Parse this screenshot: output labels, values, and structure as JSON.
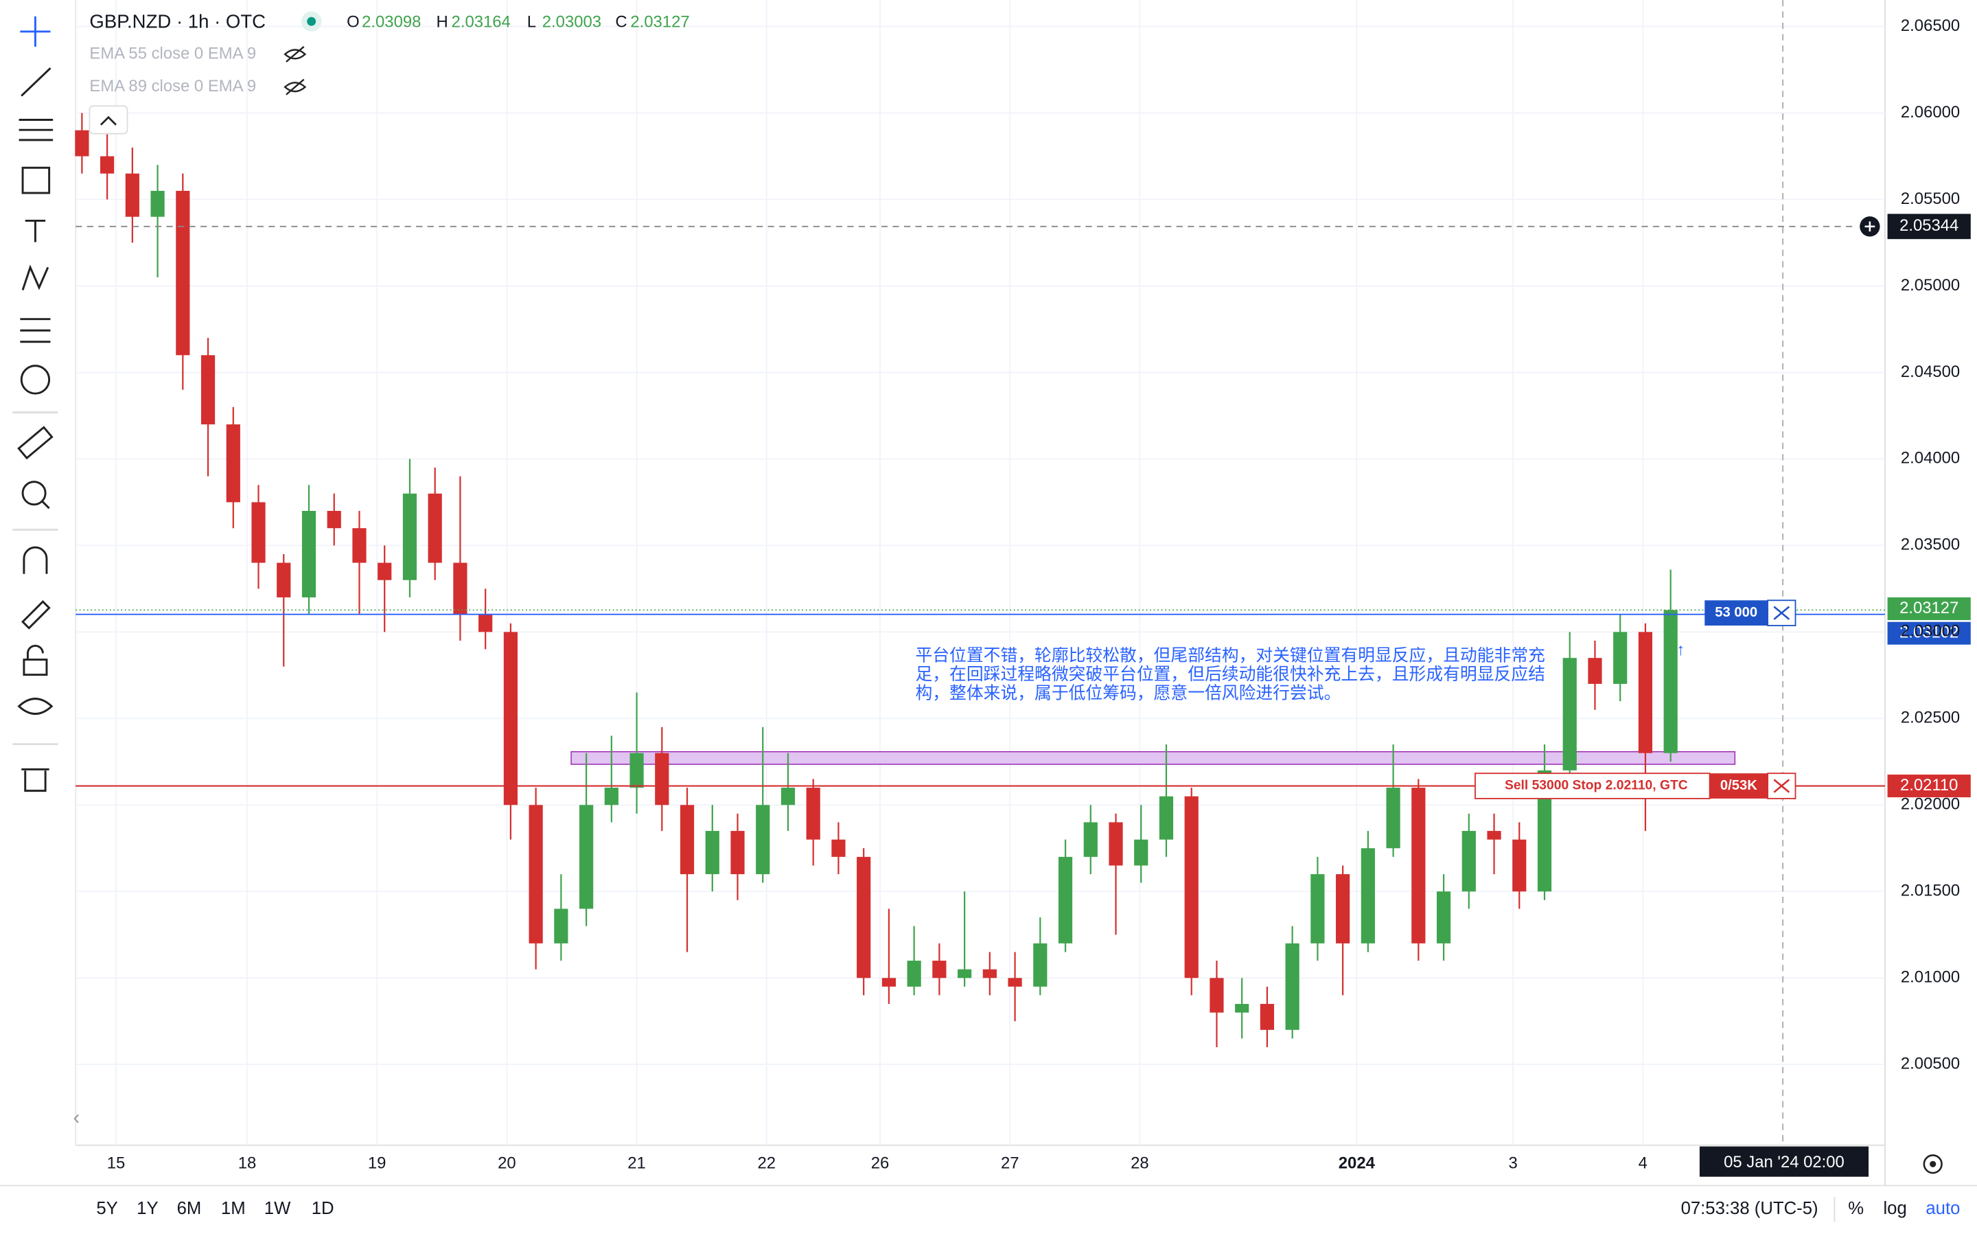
{
  "header": {
    "symbol": "GBP.NZD · 1h · OTC",
    "ohlc": [
      {
        "label": "O",
        "value": 2.03098
      },
      {
        "label": "H",
        "value": 2.03164
      },
      {
        "label": "L",
        "value": 2.03003
      },
      {
        "label": "C",
        "value": 2.03127
      }
    ],
    "indicators": [
      "EMA 55 close 0 EMA 9",
      "EMA 89 close 0 EMA 9"
    ]
  },
  "chart_data": {
    "type": "candlestick",
    "up_color": "#3fa34d",
    "down_color": "#d42f2f",
    "grid": true,
    "open": [
      2.059,
      2.0575,
      2.0565,
      2.054,
      2.0555,
      2.046,
      2.042,
      2.0375,
      2.034,
      2.032,
      2.037,
      2.036,
      2.034,
      2.033,
      2.038,
      2.034,
      2.031,
      2.03,
      2.02,
      2.012,
      2.014,
      2.02,
      2.021,
      2.023,
      2.02,
      2.016,
      2.0185,
      2.016,
      2.02,
      2.021,
      2.018,
      2.017,
      2.01,
      2.0095,
      2.011,
      2.01,
      2.0105,
      2.01,
      2.0095,
      2.012,
      2.017,
      2.019,
      2.0165,
      2.018,
      2.0205,
      2.01,
      2.008,
      2.0085,
      2.007,
      2.012,
      2.016,
      2.012,
      2.0175,
      2.021,
      2.012,
      2.015,
      2.0185,
      2.018,
      2.015,
      2.022,
      2.0285,
      2.027,
      2.03,
      2.023
    ],
    "high": [
      2.06,
      2.059,
      2.058,
      2.057,
      2.0565,
      2.047,
      2.043,
      2.0385,
      2.0345,
      2.0385,
      2.038,
      2.037,
      2.035,
      2.04,
      2.0395,
      2.039,
      2.0325,
      2.0305,
      2.021,
      2.016,
      2.023,
      2.024,
      2.0265,
      2.0245,
      2.021,
      2.02,
      2.0195,
      2.0245,
      2.023,
      2.0215,
      2.019,
      2.0175,
      2.014,
      2.013,
      2.012,
      2.015,
      2.0115,
      2.0115,
      2.0135,
      2.018,
      2.02,
      2.0195,
      2.02,
      2.0235,
      2.021,
      2.011,
      2.01,
      2.0095,
      2.013,
      2.017,
      2.0165,
      2.0185,
      2.0235,
      2.0215,
      2.016,
      2.0195,
      2.0195,
      2.019,
      2.0235,
      2.03,
      2.0295,
      2.031,
      2.0305,
      2.0336
    ],
    "low": [
      2.0565,
      2.055,
      2.0525,
      2.0505,
      2.044,
      2.039,
      2.036,
      2.0325,
      2.028,
      2.031,
      2.035,
      2.031,
      2.03,
      2.032,
      2.033,
      2.0295,
      2.029,
      2.018,
      2.0105,
      2.011,
      2.013,
      2.019,
      2.0195,
      2.0185,
      2.0115,
      2.015,
      2.0145,
      2.0155,
      2.0185,
      2.0165,
      2.016,
      2.009,
      2.0085,
      2.009,
      2.009,
      2.0095,
      2.009,
      2.0075,
      2.009,
      2.0115,
      2.016,
      2.0125,
      2.0155,
      2.017,
      2.009,
      2.006,
      2.0065,
      2.006,
      2.0065,
      2.011,
      2.009,
      2.0115,
      2.017,
      2.011,
      2.011,
      2.014,
      2.016,
      2.014,
      2.0145,
      2.021,
      2.0255,
      2.026,
      2.0185,
      2.0225
    ],
    "close": [
      2.0575,
      2.0565,
      2.054,
      2.0555,
      2.046,
      2.042,
      2.0375,
      2.034,
      2.032,
      2.037,
      2.036,
      2.034,
      2.033,
      2.038,
      2.034,
      2.031,
      2.03,
      2.02,
      2.012,
      2.014,
      2.02,
      2.021,
      2.023,
      2.02,
      2.016,
      2.0185,
      2.016,
      2.02,
      2.021,
      2.018,
      2.017,
      2.01,
      2.0095,
      2.011,
      2.01,
      2.0105,
      2.01,
      2.0095,
      2.012,
      2.017,
      2.019,
      2.0165,
      2.018,
      2.0205,
      2.01,
      2.008,
      2.0085,
      2.007,
      2.012,
      2.016,
      2.012,
      2.0175,
      2.021,
      2.012,
      2.015,
      2.0185,
      2.018,
      2.015,
      2.022,
      2.0285,
      2.027,
      2.03,
      2.023,
      2.03127
    ],
    "x_labels": [
      "15",
      "18",
      "19",
      "20",
      "21",
      "22",
      "26",
      "27",
      "28",
      "2024",
      "3",
      "4"
    ],
    "ylim": [
      2.005,
      2.065
    ],
    "yticks": [
      {
        "value": 2.005,
        "label": "2.00500"
      },
      {
        "value": 2.01,
        "label": "2.01000"
      },
      {
        "value": 2.015,
        "label": "2.01500"
      },
      {
        "value": 2.02,
        "label": "2.02000"
      },
      {
        "value": 2.025,
        "label": "2.02500"
      },
      {
        "value": 2.03,
        "label": "2.03000"
      },
      {
        "value": 2.035,
        "label": "2.03500"
      },
      {
        "value": 2.04,
        "label": "2.04000"
      },
      {
        "value": 2.045,
        "label": "2.04500"
      },
      {
        "value": 2.05,
        "label": "2.05000"
      },
      {
        "value": 2.055,
        "label": "2.05500"
      },
      {
        "value": 2.06,
        "label": "2.06000"
      },
      {
        "value": 2.065,
        "label": "2.06500"
      }
    ],
    "crosshair_price": 2.05344,
    "crosshair_time": "05 Jan '24  02:00",
    "last_price": 2.03127,
    "position": {
      "price": 2.03102,
      "qty": "53 000"
    },
    "stop_order": {
      "price": {
        "value": 2.0211,
        "label": "2.02110"
      },
      "text": "Sell 53000 Stop 2.02110, GTC",
      "filled": "0/53K"
    },
    "annotation": "平台位置不错，轮廓比较松散，但尾部结构，对关键位置有明显反应，且动能非常充足，在回踩过程略微突破平台位置，但后续动能很快补充上去，且形成有明显反应结构，整体来说，属于低位筹码，愿意一倍风险进行尝试。"
  },
  "footer": {
    "ranges": [
      "5Y",
      "1Y",
      "6M",
      "1M",
      "1W",
      "1D"
    ],
    "clock": "07:53:38 (UTC-5)",
    "options": [
      "%",
      "log",
      "auto"
    ]
  }
}
